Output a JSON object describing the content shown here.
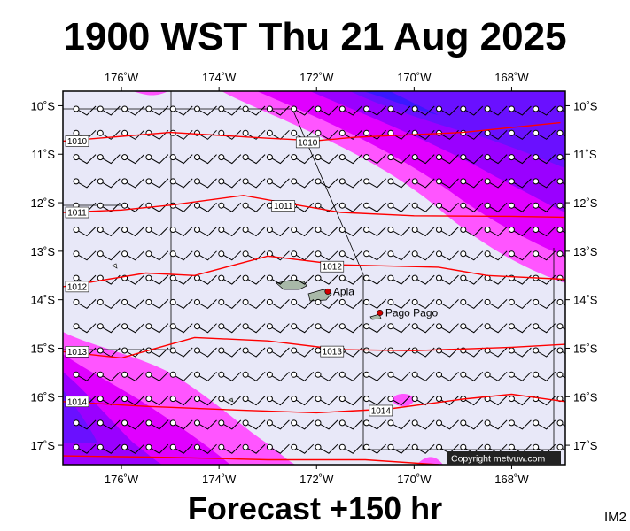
{
  "header": {
    "title": "1900 WST Thu 21 Aug 2025"
  },
  "footer": {
    "forecast": "Forecast +150 hr",
    "corner_tag": "IM2"
  },
  "map": {
    "lon_range": [
      -177.2,
      -166.9
    ],
    "lat_range": [
      -17.4,
      -9.7
    ],
    "lon_ticks": [
      {
        "value": -176,
        "label": "176˚W"
      },
      {
        "value": -174,
        "label": "174˚W"
      },
      {
        "value": -172,
        "label": "172˚W"
      },
      {
        "value": -170,
        "label": "170˚W"
      },
      {
        "value": -168,
        "label": "168˚W"
      }
    ],
    "lat_ticks": [
      {
        "value": -10,
        "label": "10˚S"
      },
      {
        "value": -11,
        "label": "11˚S"
      },
      {
        "value": -12,
        "label": "12˚S"
      },
      {
        "value": -13,
        "label": "13˚S"
      },
      {
        "value": -14,
        "label": "14˚S"
      },
      {
        "value": -15,
        "label": "15˚S"
      },
      {
        "value": -16,
        "label": "16˚S"
      },
      {
        "value": -17,
        "label": "17˚S"
      }
    ],
    "isobars": [
      {
        "label": "1010",
        "points": [
          [
            -177.2,
            -10.73
          ],
          [
            -175.0,
            -10.55
          ],
          [
            -173.0,
            -10.67
          ],
          [
            -172.0,
            -10.72
          ],
          [
            -171.2,
            -10.65
          ],
          [
            -169.0,
            -10.55
          ],
          [
            -167.0,
            -10.35
          ]
        ]
      },
      {
        "label": "1011",
        "points": [
          [
            -177.2,
            -12.2
          ],
          [
            -176.0,
            -12.15
          ],
          [
            -175.0,
            -12.05
          ],
          [
            -173.5,
            -11.85
          ],
          [
            -172.5,
            -12.03
          ],
          [
            -171.5,
            -12.2
          ],
          [
            -170.0,
            -12.27
          ],
          [
            -168.0,
            -12.28
          ],
          [
            -166.9,
            -12.3
          ]
        ]
      },
      {
        "label": "1012",
        "points": [
          [
            -177.2,
            -13.73
          ],
          [
            -175.5,
            -13.45
          ],
          [
            -174.5,
            -13.5
          ],
          [
            -173.0,
            -13.1
          ],
          [
            -171.5,
            -13.28
          ],
          [
            -169.5,
            -13.33
          ],
          [
            -168.5,
            -13.5
          ],
          [
            -166.9,
            -13.58
          ]
        ]
      },
      {
        "label": "1013",
        "points": [
          [
            -177.2,
            -15.07
          ],
          [
            -176.0,
            -15.2
          ],
          [
            -174.5,
            -14.78
          ],
          [
            -173.0,
            -14.85
          ],
          [
            -171.5,
            -15.03
          ],
          [
            -170.0,
            -15.05
          ],
          [
            -168.0,
            -14.98
          ],
          [
            -166.9,
            -14.92
          ]
        ]
      },
      {
        "label": "1014",
        "points": [
          [
            -177.2,
            -16.1
          ],
          [
            -175.5,
            -16.2
          ],
          [
            -173.5,
            -16.28
          ],
          [
            -172.0,
            -16.33
          ],
          [
            -170.5,
            -16.25
          ],
          [
            -169.0,
            -16.05
          ],
          [
            -168.0,
            -15.95
          ],
          [
            -166.9,
            -16.1
          ]
        ]
      },
      {
        "label": "",
        "points": [
          [
            -177.2,
            -17.22
          ],
          [
            -175.0,
            -17.25
          ],
          [
            -173.0,
            -17.3
          ],
          [
            -171.0,
            -17.3
          ],
          [
            -169.5,
            -17.4
          ]
        ]
      }
    ],
    "places": [
      {
        "name": "Apia",
        "lon": -171.77,
        "lat": -13.83
      },
      {
        "name": "Pago Pago",
        "lon": -170.7,
        "lat": -14.27
      }
    ],
    "copyright": "Copyright metvuw.com",
    "colors": {
      "background": "#e8e8f8",
      "rain_light": "#ff55ff",
      "rain_mid": "#e000ff",
      "rain_heavy": "#9a00ff",
      "rain_extreme": "#3a18ff",
      "isobar": "#ff0000",
      "land": "#a8b8a8",
      "place_marker": "#d00000"
    }
  }
}
